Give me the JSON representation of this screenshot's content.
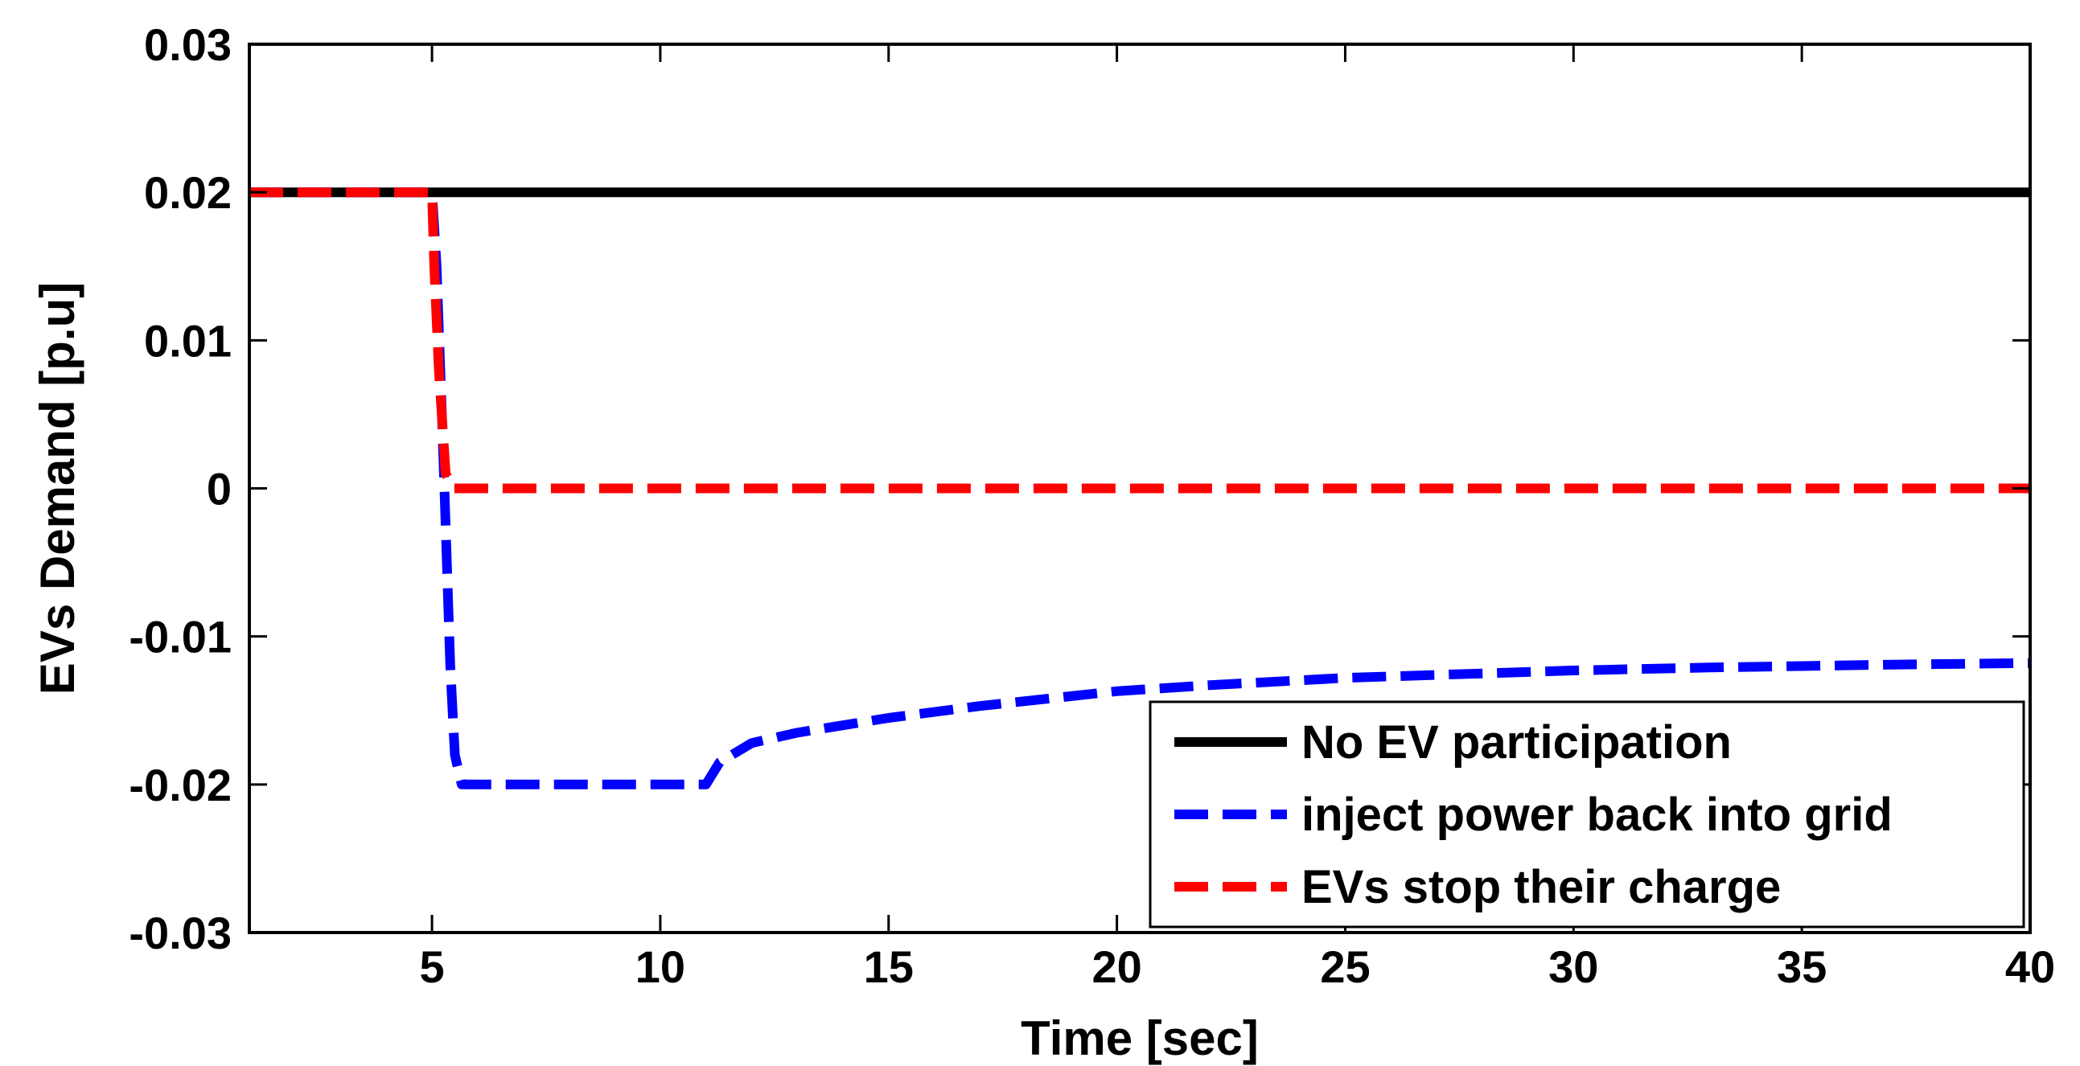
{
  "chart_data": {
    "type": "line",
    "xlabel": "Time [sec]",
    "ylabel": "EVs Demand [p.u]",
    "xlim": [
      1,
      40
    ],
    "ylim": [
      -0.03,
      0.03
    ],
    "xticks": [
      5,
      10,
      15,
      20,
      25,
      30,
      35,
      40
    ],
    "xtick_labels": [
      "5",
      "10",
      "15",
      "20",
      "25",
      "30",
      "35",
      "40"
    ],
    "yticks": [
      -0.03,
      -0.02,
      -0.01,
      0,
      0.01,
      0.02,
      0.03
    ],
    "ytick_labels": [
      "-0.03",
      "-0.02",
      "-0.01",
      "0",
      "0.01",
      "0.02",
      "0.03"
    ],
    "grid": false,
    "legend_position": "bottom-right",
    "series": [
      {
        "name": "No EV participation",
        "color": "#000000",
        "style": "solid",
        "x": [
          1,
          40
        ],
        "y": [
          0.02,
          0.02
        ]
      },
      {
        "name": "inject power back into grid",
        "color": "#0000ff",
        "style": "dashed",
        "x": [
          1,
          5,
          5.1,
          5.25,
          5.4,
          5.5,
          5.65,
          11,
          11.3,
          12,
          13,
          14,
          15,
          17,
          20,
          22,
          25,
          28,
          30,
          33,
          35,
          37,
          40
        ],
        "y": [
          0.02,
          0.02,
          0.015,
          0.002,
          -0.012,
          -0.018,
          -0.02,
          -0.02,
          -0.0185,
          -0.0172,
          -0.0165,
          -0.016,
          -0.0155,
          -0.0147,
          -0.0137,
          -0.0133,
          -0.0128,
          -0.0125,
          -0.0123,
          -0.0121,
          -0.012,
          -0.0119,
          -0.0118
        ]
      },
      {
        "name": "EVs stop their charge",
        "color": "#ff0000",
        "style": "dashed",
        "x": [
          1,
          5,
          5.05,
          5.15,
          5.3,
          5.45,
          40
        ],
        "y": [
          0.02,
          0.02,
          0.015,
          0.008,
          0.001,
          0,
          0
        ]
      }
    ]
  }
}
